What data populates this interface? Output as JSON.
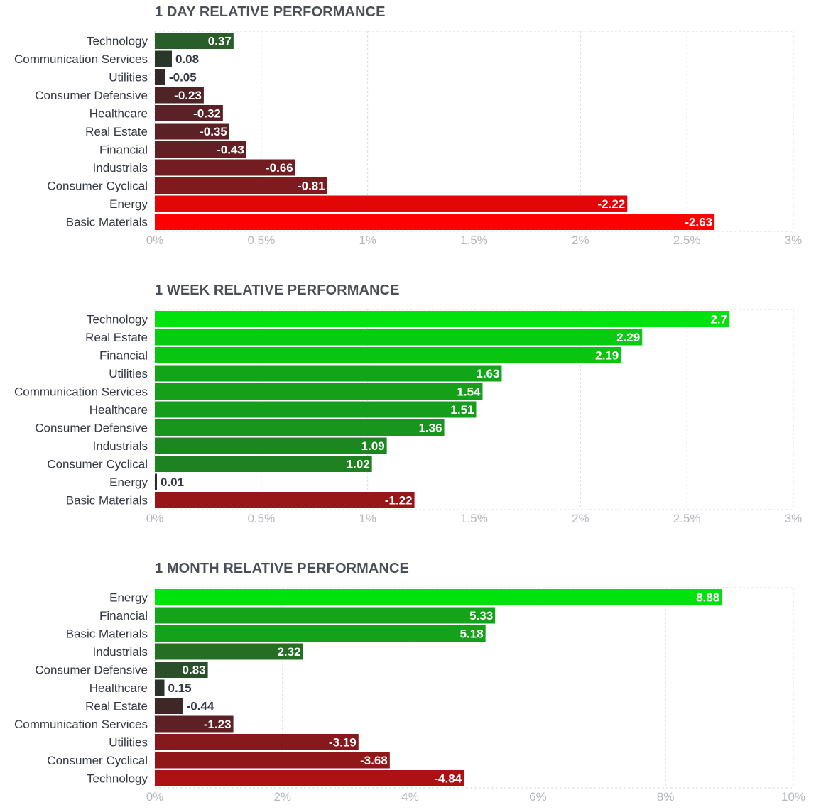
{
  "chart_data": [
    {
      "type": "bar",
      "orientation": "horizontal",
      "title": "1 DAY RELATIVE PERFORMANCE",
      "categories": [
        "Technology",
        "Communication Services",
        "Utilities",
        "Consumer Defensive",
        "Healthcare",
        "Real Estate",
        "Financial",
        "Industrials",
        "Consumer Cyclical",
        "Energy",
        "Basic Materials"
      ],
      "values": [
        0.37,
        0.08,
        -0.05,
        -0.23,
        -0.32,
        -0.35,
        -0.43,
        -0.66,
        -0.81,
        -2.22,
        -2.63
      ],
      "value_labels": [
        "0.37",
        "0.08",
        "-0.05",
        "-0.23",
        "-0.32",
        "-0.35",
        "-0.43",
        "-0.66",
        "-0.81",
        "-2.22",
        "-2.63"
      ],
      "xlim": [
        0,
        3
      ],
      "xticks": [
        0,
        0.5,
        1,
        1.5,
        2,
        2.5,
        3
      ],
      "xtick_labels": [
        "0%",
        "0.5%",
        "1%",
        "1.5%",
        "2%",
        "2.5%",
        "3%"
      ],
      "scale": "absolute value",
      "grid": true,
      "colors": {
        "positive": "#2a5a2a",
        "negative": "#8e1a1a"
      }
    },
    {
      "type": "bar",
      "orientation": "horizontal",
      "title": "1 WEEK RELATIVE PERFORMANCE",
      "categories": [
        "Technology",
        "Real Estate",
        "Financial",
        "Utilities",
        "Communication Services",
        "Healthcare",
        "Consumer Defensive",
        "Industrials",
        "Consumer Cyclical",
        "Energy",
        "Basic Materials"
      ],
      "values": [
        2.7,
        2.29,
        2.19,
        1.63,
        1.54,
        1.51,
        1.36,
        1.09,
        1.02,
        0.01,
        -1.22
      ],
      "value_labels": [
        "2.7",
        "2.29",
        "2.19",
        "1.63",
        "1.54",
        "1.51",
        "1.36",
        "1.09",
        "1.02",
        "0.01",
        "-1.22"
      ],
      "xlim": [
        0,
        3
      ],
      "xticks": [
        0,
        0.5,
        1,
        1.5,
        2,
        2.5,
        3
      ],
      "xtick_labels": [
        "0%",
        "0.5%",
        "1%",
        "1.5%",
        "2%",
        "2.5%",
        "3%"
      ],
      "scale": "absolute value",
      "grid": true,
      "colors": {
        "positive": "#00e20b",
        "negative": "#ff0000"
      }
    },
    {
      "type": "bar",
      "orientation": "horizontal",
      "title": "1 MONTH RELATIVE PERFORMANCE",
      "categories": [
        "Energy",
        "Financial",
        "Basic Materials",
        "Industrials",
        "Consumer Defensive",
        "Healthcare",
        "Real Estate",
        "Communication Services",
        "Utilities",
        "Consumer Cyclical",
        "Technology"
      ],
      "values": [
        8.88,
        5.33,
        5.18,
        2.32,
        0.83,
        0.15,
        -0.44,
        -1.23,
        -3.19,
        -3.68,
        -4.84
      ],
      "value_labels": [
        "8.88",
        "5.33",
        "5.18",
        "2.32",
        "0.83",
        "0.15",
        "-0.44",
        "-1.23",
        "-3.19",
        "-3.68",
        "-4.84"
      ],
      "xlim": [
        0,
        10
      ],
      "xticks": [
        0,
        2,
        4,
        6,
        8,
        10
      ],
      "xtick_labels": [
        "0%",
        "2%",
        "4%",
        "6%",
        "8%",
        "10%"
      ],
      "scale": "absolute value",
      "grid": true,
      "colors": {
        "positive": "#00e20b",
        "negative": "#ff0000"
      }
    }
  ]
}
